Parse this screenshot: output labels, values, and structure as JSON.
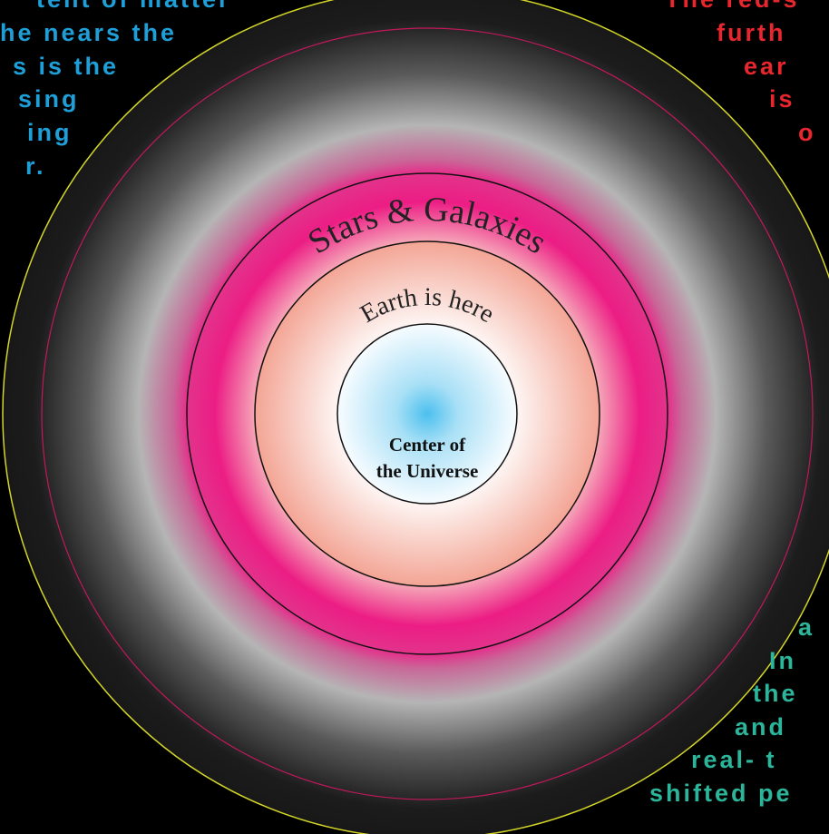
{
  "left_text": {
    "lines": [
      "tent of matter",
      "he nears the",
      "s is the",
      "sing",
      "ing",
      "r."
    ]
  },
  "right_text": {
    "lines": [
      "The red-s",
      "furth",
      "ear",
      "is",
      "o"
    ]
  },
  "bottom_text": {
    "lines": [
      "a",
      "In",
      "the",
      "and",
      "real- t",
      "shifted pe"
    ]
  },
  "rings": {
    "outer_label": "Stars & Galaxies",
    "middle_label": "Earth is here",
    "center_label": [
      "Center of",
      "the Universe"
    ]
  }
}
